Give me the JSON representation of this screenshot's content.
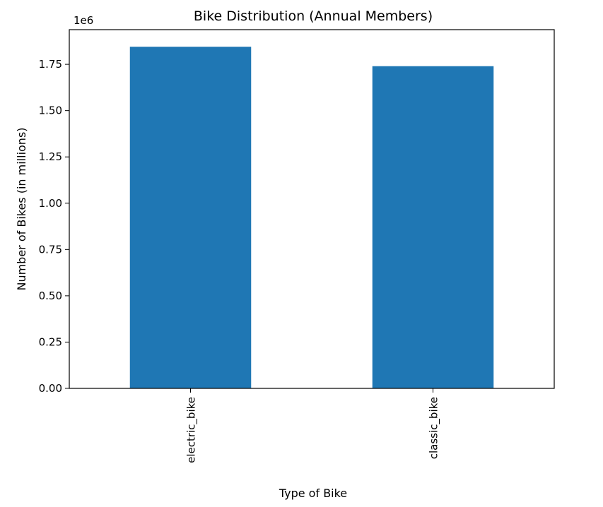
{
  "chart_data": {
    "type": "bar",
    "title": "Bike Distribution (Annual Members)",
    "xlabel": "Type of Bike",
    "ylabel": "Number of Bikes (in millions)",
    "offset_text": "1e6",
    "categories": [
      "electric_bike",
      "classic_bike"
    ],
    "values": [
      1845000,
      1740000
    ],
    "ylim": [
      0,
      1937250
    ],
    "yticks": [
      0,
      250000,
      500000,
      750000,
      1000000,
      1250000,
      1500000,
      1750000
    ],
    "ytick_labels": [
      "0.00",
      "0.25",
      "0.50",
      "0.75",
      "1.00",
      "1.25",
      "1.50",
      "1.75"
    ],
    "grid": false,
    "bar_color": "#1f77b4"
  }
}
